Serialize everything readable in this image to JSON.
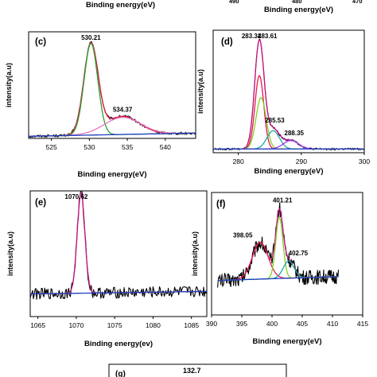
{
  "top_strip": {
    "left_xlabel": "Binding energy(eV)",
    "right_xlabel": "Binding energy(eV)",
    "right_ticks": [
      "490",
      "480",
      "470"
    ]
  },
  "chart_data": [
    {
      "id": "c",
      "panel_label": "(c)",
      "type": "line",
      "title": "",
      "xlabel": "Binding energy(eV)",
      "ylabel": "intensity(a.u)",
      "xlim": [
        522,
        544
      ],
      "ylim": [
        0,
        1.0
      ],
      "xticks": [
        "525",
        "530",
        "535",
        "540"
      ],
      "grid": false,
      "annotations": [
        {
          "text": "530.21",
          "x": 530.21
        },
        {
          "text": "534.37",
          "x": 534.37
        }
      ],
      "series": [
        {
          "role": "experimental",
          "color": "#000000",
          "noise": 0.012,
          "components": [
            {
              "center": 530.21,
              "height": 0.84,
              "width": 0.95
            },
            {
              "center": 534.37,
              "height": 0.17,
              "width": 2.2
            }
          ],
          "baseline": [
            0.02,
            0.05
          ]
        },
        {
          "role": "envelope",
          "color": "#e6194b",
          "components": [
            {
              "center": 530.21,
              "height": 0.84,
              "width": 0.95
            },
            {
              "center": 534.37,
              "height": 0.17,
              "width": 2.2
            }
          ],
          "baseline": [
            0.02,
            0.05
          ]
        },
        {
          "role": "component",
          "color": "#2ca02c",
          "components": [
            {
              "center": 530.21,
              "height": 0.86,
              "width": 0.9
            }
          ],
          "baseline": [
            0.02,
            0.05
          ]
        },
        {
          "role": "component",
          "color": "#e377c2",
          "components": [
            {
              "center": 534.37,
              "height": 0.16,
              "width": 2.4
            }
          ],
          "baseline": [
            0.02,
            0.05
          ]
        },
        {
          "role": "baseline",
          "color": "#1f3fbf",
          "components": [],
          "baseline": [
            0.02,
            0.05
          ]
        }
      ]
    },
    {
      "id": "d",
      "panel_label": "(d)",
      "type": "line",
      "title": "",
      "xlabel": "Binding energy(eV)",
      "ylabel": "intensity(a.u)",
      "xlim": [
        276,
        300
      ],
      "ylim": [
        0,
        1.0
      ],
      "xticks": [
        "280",
        "290",
        "300"
      ],
      "grid": false,
      "annotations": [
        {
          "text": "283.34",
          "x": 283.34
        },
        {
          "text": "283.61",
          "x": 283.61
        },
        {
          "text": "285.53",
          "x": 285.53
        },
        {
          "text": "288.35",
          "x": 288.35
        }
      ],
      "series": [
        {
          "role": "experimental",
          "color": "#000000",
          "noise": 0.008,
          "components": [
            {
              "center": 283.34,
              "height": 0.88,
              "width": 0.75
            },
            {
              "center": 285.53,
              "height": 0.16,
              "width": 1.0
            },
            {
              "center": 288.35,
              "height": 0.07,
              "width": 1.2
            }
          ],
          "baseline": [
            0.03,
            0.03
          ]
        },
        {
          "role": "envelope",
          "color": "#c71585",
          "components": [
            {
              "center": 283.34,
              "height": 0.88,
              "width": 0.75
            },
            {
              "center": 285.53,
              "height": 0.16,
              "width": 1.0
            },
            {
              "center": 288.35,
              "height": 0.07,
              "width": 1.2
            }
          ],
          "baseline": [
            0.03,
            0.03
          ]
        },
        {
          "role": "component",
          "color": "#e6194b",
          "components": [
            {
              "center": 283.34,
              "height": 0.6,
              "width": 0.7
            }
          ],
          "baseline": [
            0.03,
            0.03
          ]
        },
        {
          "role": "component",
          "color": "#7ed321",
          "components": [
            {
              "center": 283.61,
              "height": 0.42,
              "width": 0.8
            }
          ],
          "baseline": [
            0.03,
            0.03
          ]
        },
        {
          "role": "component",
          "color": "#1fa6a6",
          "components": [
            {
              "center": 285.53,
              "height": 0.15,
              "width": 1.0
            }
          ],
          "baseline": [
            0.03,
            0.03
          ]
        },
        {
          "role": "component",
          "color": "#9b30ff",
          "components": [
            {
              "center": 288.35,
              "height": 0.07,
              "width": 1.2
            }
          ],
          "baseline": [
            0.03,
            0.03
          ]
        },
        {
          "role": "baseline",
          "color": "#1f3fbf",
          "components": [],
          "baseline": [
            0.03,
            0.03
          ]
        }
      ]
    },
    {
      "id": "e",
      "panel_label": "(e)",
      "type": "line",
      "title": "",
      "xlabel": "Binding energy(ev)",
      "ylabel": "intensity(a.u)",
      "xlim": [
        1064,
        1087
      ],
      "ylim": [
        0,
        1.0
      ],
      "xticks": [
        "1065",
        "1070",
        "1075",
        "1080",
        "1085"
      ],
      "grid": false,
      "annotations": [
        {
          "text": "1070.62",
          "x": 1070.62
        }
      ],
      "series": [
        {
          "role": "experimental",
          "color": "#000000",
          "noise": 0.045,
          "components": [
            {
              "center": 1070.62,
              "height": 0.8,
              "width": 0.5
            }
          ],
          "baseline": [
            0.18,
            0.2
          ]
        },
        {
          "role": "envelope",
          "color": "#c71585",
          "components": [
            {
              "center": 1070.62,
              "height": 0.8,
              "width": 0.5
            }
          ],
          "baseline": [
            0.18,
            0.2
          ]
        },
        {
          "role": "baseline",
          "color": "#1f3fbf",
          "components": [],
          "baseline": [
            0.18,
            0.2
          ]
        }
      ]
    },
    {
      "id": "f",
      "panel_label": "(f)",
      "type": "line",
      "title": "",
      "xlabel": "Binding energy(eV)",
      "ylabel": "intensity(a.u)",
      "xlim": [
        390,
        415
      ],
      "ylim": [
        0,
        1.0
      ],
      "xticks": [
        "390",
        "395",
        "400",
        "405",
        "410",
        "415"
      ],
      "grid": false,
      "annotations": [
        {
          "text": "398.05",
          "x": 398.05
        },
        {
          "text": "401.21",
          "x": 401.21
        },
        {
          "text": "402.75",
          "x": 402.75
        }
      ],
      "series": [
        {
          "role": "experimental",
          "color": "#000000",
          "noise": 0.06,
          "xrange": [
            391,
            411
          ],
          "components": [
            {
              "center": 398.05,
              "height": 0.3,
              "width": 1.3
            },
            {
              "center": 401.21,
              "height": 0.52,
              "width": 0.6
            },
            {
              "center": 402.75,
              "height": 0.14,
              "width": 0.9
            }
          ],
          "baseline": [
            0.28,
            0.32
          ]
        },
        {
          "role": "envelope",
          "color": "#c71585",
          "xrange": [
            391,
            411
          ],
          "components": [
            {
              "center": 398.05,
              "height": 0.3,
              "width": 1.3
            },
            {
              "center": 401.21,
              "height": 0.52,
              "width": 0.6
            },
            {
              "center": 402.75,
              "height": 0.14,
              "width": 0.9
            }
          ],
          "baseline": [
            0.28,
            0.32
          ]
        },
        {
          "role": "component",
          "color": "#e6194b",
          "xrange": [
            391,
            411
          ],
          "components": [
            {
              "center": 398.05,
              "height": 0.3,
              "width": 1.3
            }
          ],
          "baseline": [
            0.28,
            0.32
          ]
        },
        {
          "role": "component",
          "color": "#7ed321",
          "xrange": [
            391,
            411
          ],
          "components": [
            {
              "center": 401.21,
              "height": 0.5,
              "width": 0.6
            }
          ],
          "baseline": [
            0.28,
            0.32
          ]
        },
        {
          "role": "component",
          "color": "#1fa6a6",
          "xrange": [
            391,
            411
          ],
          "components": [
            {
              "center": 402.75,
              "height": 0.14,
              "width": 0.9
            }
          ],
          "baseline": [
            0.28,
            0.32
          ]
        },
        {
          "role": "baseline",
          "color": "#1f3fbf",
          "xrange": [
            391,
            411
          ],
          "components": [],
          "baseline": [
            0.28,
            0.32
          ]
        }
      ]
    }
  ],
  "bottom_panel": {
    "panel_label": "(g)",
    "annotation": "132.7"
  }
}
